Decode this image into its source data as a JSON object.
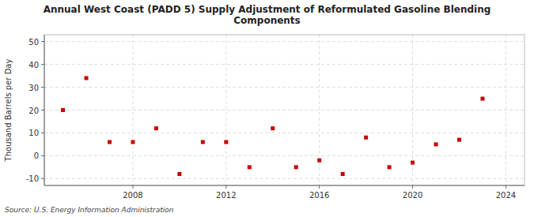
{
  "chart_data": {
    "type": "scatter",
    "title": "Annual West Coast (PADD 5) Supply Adjustment of Reformulated Gasoline Blending\nComponents",
    "y_label": "Thousand Barrels per Day",
    "source": "Source: U.S. Energy Information Administration",
    "x": [
      2005,
      2006,
      2007,
      2008,
      2009,
      2010,
      2011,
      2012,
      2013,
      2014,
      2015,
      2016,
      2017,
      2018,
      2019,
      2020,
      2021,
      2022,
      2023
    ],
    "values": [
      20,
      34,
      6,
      6,
      12,
      -8,
      6,
      6,
      -5,
      12,
      -5,
      -2,
      -8,
      8,
      -5,
      -3,
      5,
      7,
      25
    ],
    "color": "#cc0000",
    "marker": "square",
    "xlim": [
      2004.2,
      2024.8
    ],
    "xticks": [
      2008,
      2012,
      2016,
      2020,
      2024
    ],
    "ylim": [
      -13,
      53
    ],
    "yticks": [
      -10,
      0,
      10,
      20,
      30,
      40,
      50
    ],
    "grid": true
  }
}
